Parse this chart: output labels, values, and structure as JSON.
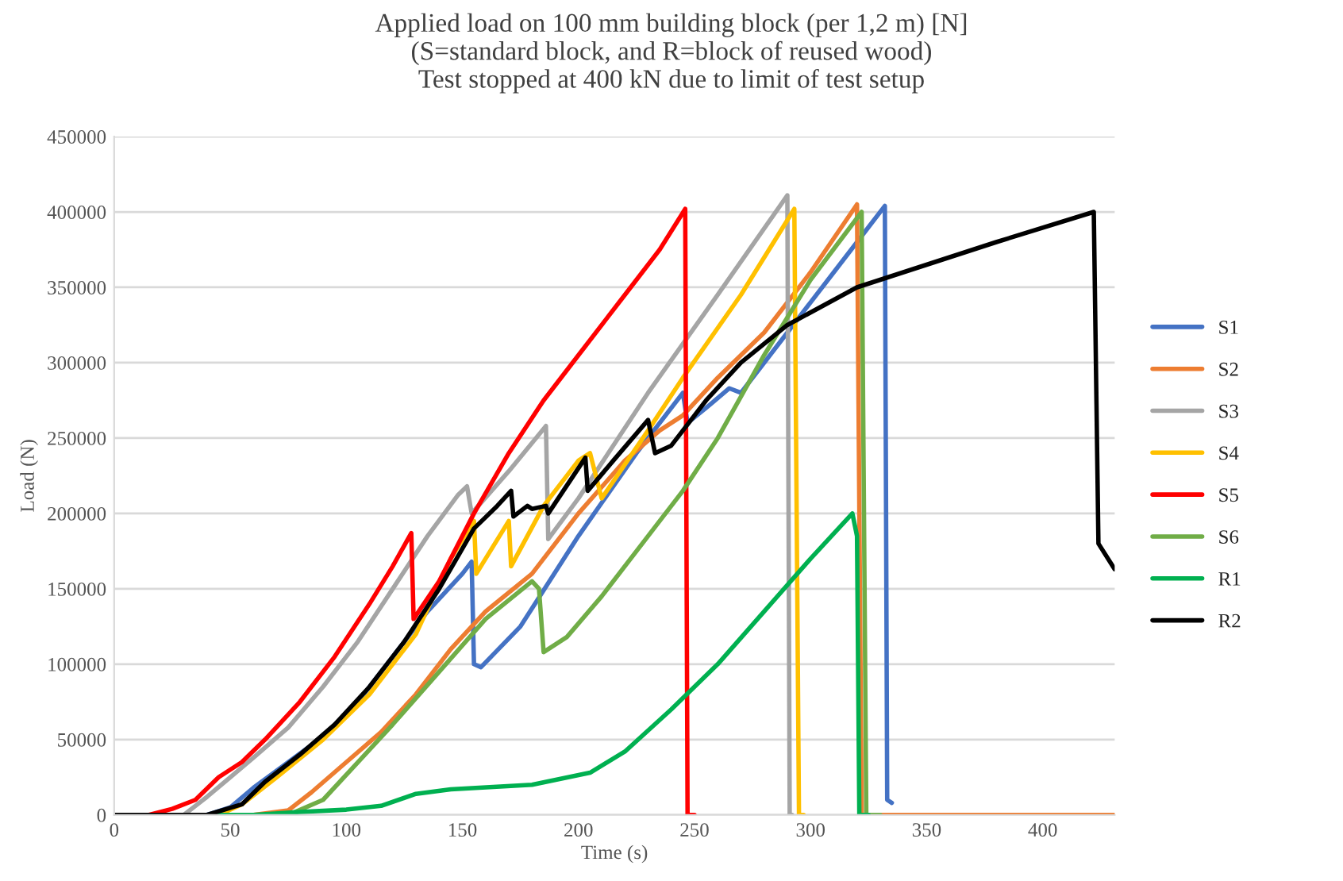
{
  "chart_data": {
    "type": "line",
    "title": "Applied load on 100 mm building block (per 1,2 m) [N]\n(S=standard block, and R=block of reused wood)\nTest stopped at 400 kN due to limit of test setup",
    "xlabel": "Time (s)",
    "ylabel": "Load (N)",
    "xlim": [
      0,
      431
    ],
    "ylim": [
      0,
      450000
    ],
    "xticks": [
      0,
      50,
      100,
      150,
      200,
      250,
      300,
      350,
      400
    ],
    "yticks": [
      0,
      50000,
      100000,
      150000,
      200000,
      250000,
      300000,
      350000,
      400000,
      450000
    ],
    "grid": "y",
    "legend": "right",
    "marker": "none",
    "line_style": "solid",
    "series": [
      {
        "name": "S1",
        "color": "#4472c4",
        "x": [
          0,
          40,
          50,
          60,
          75,
          90,
          105,
          120,
          135,
          150,
          154,
          155,
          158,
          175,
          200,
          225,
          245,
          247,
          255,
          265,
          270,
          290,
          310,
          325,
          332,
          333,
          335
        ],
        "values": [
          0,
          0,
          5000,
          18000,
          35000,
          52000,
          75000,
          105000,
          135000,
          160000,
          168000,
          100000,
          98000,
          125000,
          185000,
          240000,
          280000,
          260000,
          270000,
          283000,
          280000,
          320000,
          360000,
          390000,
          404000,
          10000,
          8000
        ]
      },
      {
        "name": "S2",
        "color": "#ed7d31",
        "x": [
          0,
          60,
          75,
          85,
          100,
          115,
          130,
          145,
          160,
          180,
          200,
          220,
          235,
          245,
          260,
          280,
          300,
          320,
          322,
          431
        ],
        "values": [
          0,
          0,
          3000,
          15000,
          35000,
          55000,
          80000,
          110000,
          135000,
          160000,
          200000,
          235000,
          255000,
          265000,
          290000,
          320000,
          360000,
          405000,
          0,
          0
        ]
      },
      {
        "name": "S3",
        "color": "#a5a5a5",
        "x": [
          0,
          30,
          40,
          50,
          60,
          75,
          90,
          105,
          120,
          135,
          148,
          152,
          154,
          170,
          186,
          187,
          200,
          230,
          260,
          290,
          291,
          292
        ],
        "values": [
          0,
          0,
          12000,
          25000,
          38000,
          58000,
          85000,
          115000,
          150000,
          185000,
          212000,
          218000,
          200000,
          228000,
          258000,
          183000,
          210000,
          280000,
          345000,
          411000,
          0,
          0
        ]
      },
      {
        "name": "S4",
        "color": "#ffc000",
        "x": [
          0,
          45,
          55,
          70,
          90,
          110,
          130,
          145,
          155,
          156,
          170,
          171,
          185,
          200,
          205,
          210,
          230,
          245,
          270,
          293,
          295,
          297
        ],
        "values": [
          0,
          0,
          7000,
          25000,
          50000,
          80000,
          120000,
          170000,
          195000,
          160000,
          195000,
          165000,
          205000,
          235000,
          240000,
          210000,
          255000,
          290000,
          345000,
          402000,
          0,
          0
        ]
      },
      {
        "name": "S5",
        "color": "#ff0000",
        "x": [
          0,
          15,
          25,
          35,
          45,
          55,
          65,
          80,
          95,
          110,
          120,
          128,
          129,
          140,
          155,
          170,
          185,
          200,
          220,
          235,
          246,
          247,
          250
        ],
        "values": [
          0,
          0,
          4000,
          10000,
          25000,
          35000,
          50000,
          75000,
          105000,
          140000,
          165000,
          187000,
          130000,
          155000,
          200000,
          240000,
          275000,
          305000,
          345000,
          375000,
          402000,
          0,
          0
        ]
      },
      {
        "name": "S6",
        "color": "#70ad47",
        "x": [
          0,
          75,
          90,
          105,
          120,
          140,
          160,
          180,
          183,
          185,
          195,
          210,
          230,
          245,
          260,
          280,
          300,
          322,
          324,
          330
        ],
        "values": [
          0,
          0,
          10000,
          35000,
          60000,
          95000,
          130000,
          155000,
          150000,
          108000,
          118000,
          145000,
          185000,
          215000,
          250000,
          305000,
          355000,
          400000,
          0,
          0
        ]
      },
      {
        "name": "R1",
        "color": "#00b050",
        "x": [
          0,
          60,
          80,
          100,
          115,
          130,
          145,
          180,
          205,
          220,
          240,
          260,
          280,
          300,
          318,
          320,
          321,
          325
        ],
        "values": [
          0,
          0,
          2000,
          3500,
          6000,
          14000,
          17000,
          20000,
          28000,
          42000,
          70000,
          100000,
          135000,
          170000,
          200000,
          185000,
          0,
          0
        ]
      },
      {
        "name": "R2",
        "color": "#000000",
        "x": [
          0,
          40,
          55,
          65,
          80,
          95,
          110,
          125,
          140,
          155,
          165,
          171,
          172,
          178,
          180,
          186,
          187,
          203,
          204,
          215,
          230,
          233,
          240,
          255,
          270,
          290,
          320,
          350,
          380,
          422,
          424,
          431
        ],
        "values": [
          0,
          0,
          7000,
          22000,
          40000,
          60000,
          85000,
          115000,
          150000,
          190000,
          205000,
          215000,
          198000,
          205000,
          203000,
          205000,
          200000,
          237000,
          215000,
          235000,
          262000,
          240000,
          245000,
          275000,
          300000,
          325000,
          350000,
          365000,
          380000,
          400000,
          180000,
          163000
        ]
      }
    ]
  }
}
